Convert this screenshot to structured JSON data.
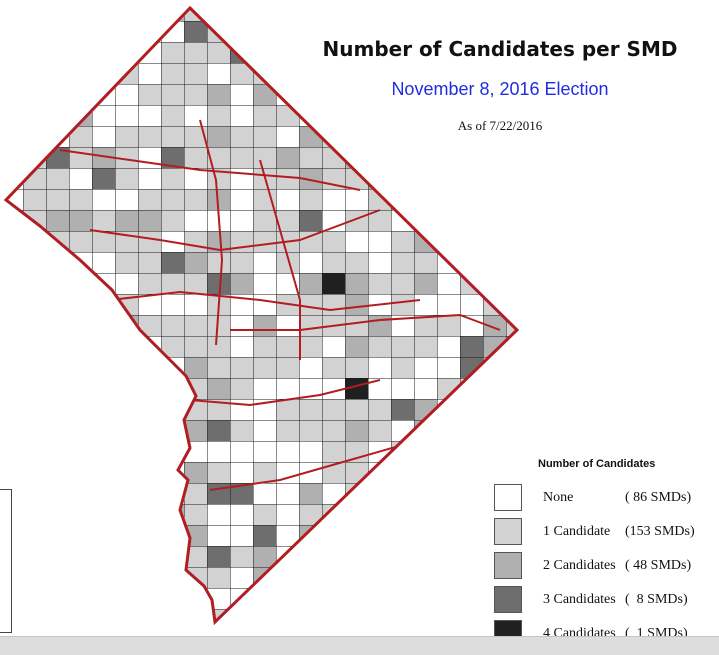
{
  "header": {
    "title": "Number of Candidates per SMD",
    "subtitle": "November 8, 2016 Election",
    "as_of": "As of 7/22/2016"
  },
  "legend": {
    "title": "Number of Candidates",
    "items": [
      {
        "label": "None",
        "count": "( 86 SMDs)",
        "color": "#ffffff"
      },
      {
        "label": "1 Candidate",
        "count": "(153 SMDs)",
        "color": "#d2d2d2"
      },
      {
        "label": "2 Candidates",
        "count": "( 48 SMDs)",
        "color": "#b0b0b0"
      },
      {
        "label": "3 Candidates",
        "count": "(  8 SMDs)",
        "color": "#6e6e6e"
      },
      {
        "label": "4 Candidates",
        "count": "(  1 SMDs)",
        "color": "#202020"
      }
    ]
  },
  "map": {
    "border_color": "#b11d22",
    "district_line_color": "#1a1a1a"
  }
}
